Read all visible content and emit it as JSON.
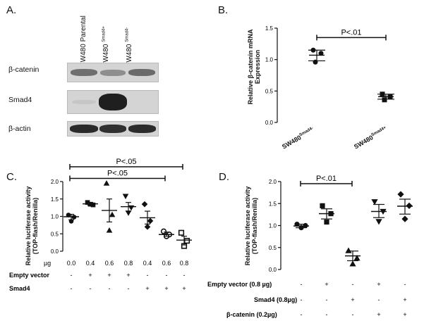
{
  "panel_letters": {
    "a": "A.",
    "b": "B.",
    "c": "C.",
    "d": "D."
  },
  "panel_a": {
    "lanes": [
      "SW480 Parental",
      "SW480 ",
      "SW480 "
    ],
    "lane_sups": [
      "Smad4+",
      "Smad4-"
    ],
    "rows": [
      "β-catenin",
      "Smad4",
      "β-actin"
    ]
  },
  "chart_data": [
    {
      "panel": "B",
      "type": "scatter",
      "ylabel": "Relative β-catenin mRNA Expression",
      "ylim": [
        0,
        1.5
      ],
      "yticks": [
        "0.0",
        "0.5",
        "1.0",
        "1.5"
      ],
      "categories": [
        "SW480",
        "SW480"
      ],
      "category_sups": [
        "Smad4-",
        "Smad4+"
      ],
      "series": [
        {
          "marker": "circle",
          "points": [
            1.15,
            1.1,
            0.96
          ],
          "mean": 1.07,
          "sem_low": 0.98,
          "sem_high": 1.15
        },
        {
          "marker": "square",
          "points": [
            0.45,
            0.41,
            0.36
          ],
          "mean": 0.41,
          "sem_low": 0.37,
          "sem_high": 0.45
        }
      ],
      "annotation": {
        "text": "P<.01",
        "from": 0,
        "to": 1,
        "y": 1.35
      }
    },
    {
      "panel": "C",
      "type": "scatter",
      "ylabel": "Relative luciferase activity (TOP-flash/Renilla)",
      "ylim": [
        0,
        2.0
      ],
      "yticks": [
        "0.0",
        "0.5",
        "1.0",
        "1.5",
        "2.0"
      ],
      "groups": [
        {
          "marker": "circle",
          "points": [
            1.04,
            0.98,
            0.86
          ],
          "mean": 0.99,
          "sem_low": 0.9,
          "sem_high": 1.06
        },
        {
          "marker": "square",
          "points": [
            1.4,
            1.33,
            1.35
          ],
          "mean": 1.36,
          "sem_low": 1.32,
          "sem_high": 1.4
        },
        {
          "marker": "triangle-up",
          "points": [
            1.95,
            1.05,
            0.6
          ],
          "mean": 1.17,
          "sem_low": 0.84,
          "sem_high": 1.5
        },
        {
          "marker": "triangle-down",
          "points": [
            1.58,
            1.25,
            1.1
          ],
          "mean": 1.28,
          "sem_low": 1.15,
          "sem_high": 1.4
        },
        {
          "marker": "diamond",
          "points": [
            1.35,
            0.87,
            0.7
          ],
          "mean": 0.96,
          "sem_low": 0.78,
          "sem_high": 1.15
        },
        {
          "marker": "circle-open",
          "points": [
            0.57,
            0.48,
            0.43
          ],
          "mean": 0.48,
          "sem_low": 0.43,
          "sem_high": 0.55
        },
        {
          "marker": "square-open",
          "points": [
            0.53,
            0.3,
            0.15
          ],
          "mean": 0.32,
          "sem_low": 0.18,
          "sem_high": 0.43
        }
      ],
      "annotations": [
        {
          "text": "P<.05",
          "from": 0,
          "to": 6,
          "y": 2.22
        },
        {
          "text": "P<.05",
          "from": 0,
          "to": 5,
          "y": 1.97
        }
      ],
      "table": {
        "rows": [
          {
            "label": "µg",
            "cells": [
              "0.0",
              "0.4",
              "0.6",
              "0.8",
              "0.4",
              "0.6",
              "0.8"
            ]
          },
          {
            "label": "Empty vector",
            "cells": [
              "-",
              "+",
              "+",
              "+",
              "-",
              "-",
              "-"
            ]
          },
          {
            "label": "Smad4",
            "cells": [
              "-",
              "-",
              "-",
              "-",
              "+",
              "+",
              "+"
            ]
          }
        ]
      }
    },
    {
      "panel": "D",
      "type": "scatter",
      "ylabel": "Relative luciferase activity (TOP-flash/Renilla)",
      "ylim": [
        0,
        2.0
      ],
      "yticks": [
        "0.0",
        "0.5",
        "1.0",
        "1.5",
        "2.0"
      ],
      "groups": [
        {
          "marker": "circle",
          "points": [
            1.03,
            1.0,
            0.95
          ],
          "mean": 0.99,
          "sem_low": 0.95,
          "sem_high": 1.03
        },
        {
          "marker": "square",
          "points": [
            1.45,
            1.27,
            1.08
          ],
          "mean": 1.27,
          "sem_low": 1.15,
          "sem_high": 1.38
        },
        {
          "marker": "triangle-up",
          "points": [
            0.43,
            0.26,
            0.13
          ],
          "mean": 0.31,
          "sem_low": 0.2,
          "sem_high": 0.42
        },
        {
          "marker": "triangle-down",
          "points": [
            1.54,
            1.32,
            1.09
          ],
          "mean": 1.32,
          "sem_low": 1.18,
          "sem_high": 1.48
        },
        {
          "marker": "diamond",
          "points": [
            1.71,
            1.45,
            1.15
          ],
          "mean": 1.44,
          "sem_low": 1.26,
          "sem_high": 1.6
        }
      ],
      "annotations": [
        {
          "text": "P<.01",
          "from": 0,
          "to": 2,
          "y": 2.0
        }
      ],
      "table": {
        "rows": [
          {
            "label": "Empty vector (0.8 µg)",
            "cells": [
              "-",
              "+",
              "-",
              "+",
              "-"
            ]
          },
          {
            "label": "Smad4 (0.8µg)",
            "cells": [
              "-",
              "-",
              "+",
              "-",
              "+"
            ]
          },
          {
            "label": "β-catenin (0.2µg)",
            "cells": [
              "-",
              "-",
              "-",
              "+",
              "+"
            ]
          }
        ]
      }
    }
  ]
}
